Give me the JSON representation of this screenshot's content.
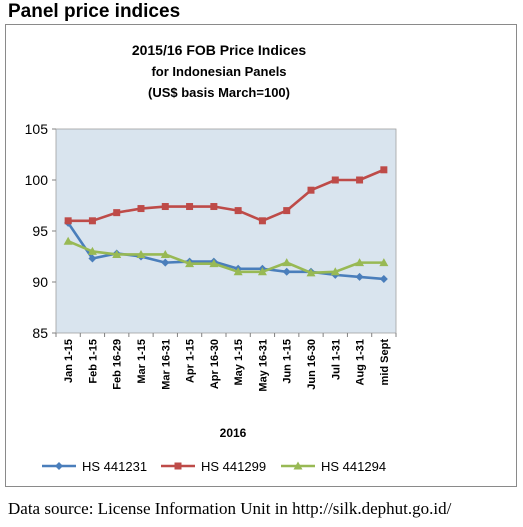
{
  "page": {
    "heading": "Panel price indices",
    "source": "Data source: License Information Unit in http://silk.dephut.go.id/"
  },
  "chart_data": {
    "type": "line",
    "title_lines": [
      "2015/16 FOB Price Indices",
      "for Indonesian Panels",
      "(US$ basis March=100)"
    ],
    "xlabel": "2016",
    "ylabel": "",
    "ylim": [
      85,
      105
    ],
    "yticks": [
      85,
      90,
      95,
      100,
      105
    ],
    "grid": false,
    "legend_position": "bottom",
    "plot_background": "#d9e4ee",
    "categories": [
      "Jan 1-15",
      "Feb 1-15",
      "Feb 16-29",
      "Mar 1-15",
      "Mar 16-31",
      "Apr 1-15",
      "Apr 16-30",
      "May 1-15",
      "May 16-31",
      "Jun 1-15",
      "Jun 16-30",
      "Jul 1-31",
      "Aug 1-31",
      "mid Sept"
    ],
    "series": [
      {
        "name": "HS 441231",
        "color": "#4a7ebb",
        "marker": "diamond",
        "values": [
          95.8,
          92.3,
          92.8,
          92.5,
          91.9,
          92.0,
          92.0,
          91.3,
          91.3,
          91.0,
          91.0,
          90.7,
          90.5,
          90.3
        ]
      },
      {
        "name": "HS 441299",
        "color": "#be4b48",
        "marker": "square",
        "values": [
          96.0,
          96.0,
          96.8,
          97.2,
          97.4,
          97.4,
          97.4,
          97.0,
          96.0,
          97.0,
          99.0,
          100.0,
          100.0,
          101.0
        ]
      },
      {
        "name": "HS 441294",
        "color": "#98b954",
        "marker": "triangle",
        "values": [
          94.0,
          93.0,
          92.7,
          92.7,
          92.7,
          91.8,
          91.8,
          91.0,
          91.0,
          91.9,
          90.9,
          91.0,
          91.9,
          91.9
        ]
      }
    ]
  }
}
